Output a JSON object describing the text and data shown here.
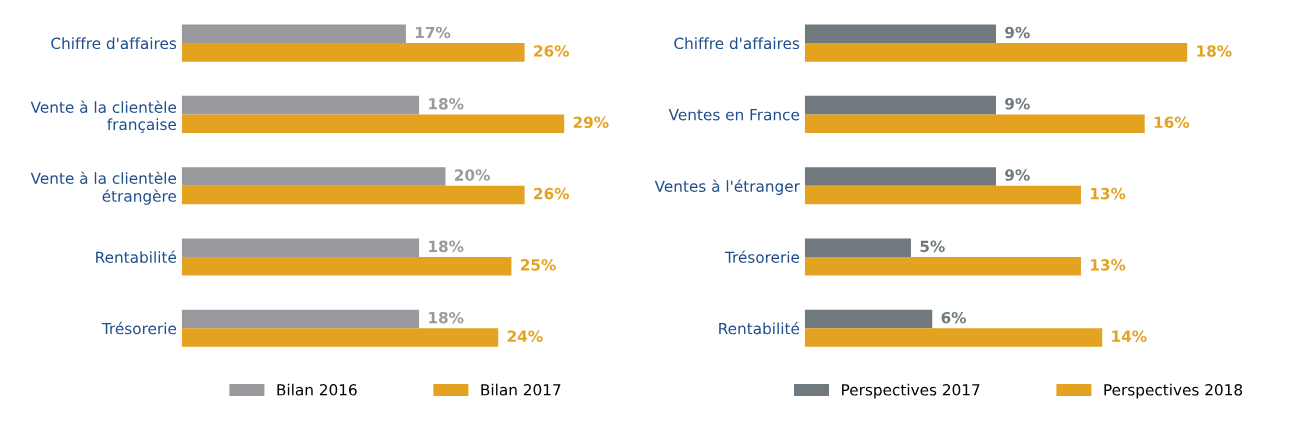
{
  "chart_data": [
    {
      "type": "bar",
      "orientation": "horizontal",
      "categories": [
        "Chiffre d'affaires",
        "Vente à la clientèle\nfrançaise",
        "Vente à la clientèle\nétrangère",
        "Rentabilité",
        "Trésorerie"
      ],
      "series": [
        {
          "name": "Bilan 2016",
          "color": "#9a9a9e",
          "values": [
            17,
            18,
            20,
            18,
            18
          ],
          "value_labels": [
            "17%",
            "18%",
            "20%",
            "18%",
            "18%"
          ]
        },
        {
          "name": "Bilan 2017",
          "color": "#e3a21f",
          "values": [
            26,
            29,
            26,
            25,
            24
          ],
          "value_labels": [
            "26%",
            "29%",
            "26%",
            "25%",
            "24%"
          ]
        }
      ],
      "legend": "bottom",
      "tick_labels": "y",
      "grid": false
    },
    {
      "type": "bar",
      "orientation": "horizontal",
      "categories": [
        "Chiffre d'affaires",
        "Ventes en France",
        "Ventes à l'étranger",
        "Trésorerie",
        "Rentabilité"
      ],
      "series": [
        {
          "name": "Perspectives 2017",
          "color": "#6f797e",
          "values": [
            9,
            9,
            9,
            5,
            6
          ],
          "value_labels": [
            "9%",
            "9%",
            "9%",
            "5%",
            "6%"
          ]
        },
        {
          "name": "Perspectives 2018",
          "color": "#e3a21f",
          "values": [
            18,
            16,
            13,
            13,
            14
          ],
          "value_labels": [
            "18%",
            "16%",
            "13%",
            "13%",
            "14%"
          ]
        }
      ],
      "legend": "bottom",
      "tick_labels": "y",
      "grid": false
    }
  ]
}
